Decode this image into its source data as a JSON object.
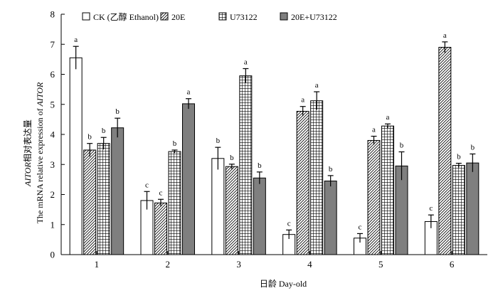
{
  "chart_data": {
    "type": "bar",
    "categories": [
      "1",
      "2",
      "3",
      "4",
      "5",
      "6"
    ],
    "xlabel": "日龄 Day-old",
    "ylabel_line1_italic": "AITOR",
    "ylabel_line1_rest": "相对表达量",
    "ylabel_line2_prefix": "The mRNA relative expression of ",
    "ylabel_line2_italic": "AITOR",
    "ylim": [
      0,
      8
    ],
    "yticks": [
      "0",
      "1",
      "2",
      "3",
      "4",
      "5",
      "6",
      "7",
      "8"
    ],
    "legend_position": "top",
    "series": [
      {
        "name": "CK (乙醇 Ethanol)",
        "pattern": "white",
        "values": [
          6.55,
          1.8,
          3.2,
          0.67,
          0.55,
          1.1
        ],
        "errors": [
          0.38,
          0.3,
          0.37,
          0.15,
          0.15,
          0.22
        ],
        "letters": [
          "a",
          "c",
          "b",
          "c",
          "c",
          "c"
        ]
      },
      {
        "name": "20E",
        "pattern": "diagonal",
        "values": [
          3.48,
          1.72,
          2.93,
          4.77,
          3.8,
          6.9
        ],
        "errors": [
          0.22,
          0.12,
          0.08,
          0.16,
          0.14,
          0.18
        ],
        "letters": [
          "b",
          "c",
          "b",
          "a",
          "a",
          "a"
        ]
      },
      {
        "name": "U73122",
        "pattern": "grid",
        "values": [
          3.7,
          3.43,
          5.95,
          5.12,
          4.28,
          2.97
        ],
        "errors": [
          0.2,
          0.05,
          0.24,
          0.3,
          0.07,
          0.07
        ],
        "letters": [
          "b",
          "b",
          "a",
          "a",
          "a",
          "b"
        ]
      },
      {
        "name": "20E+U73122",
        "pattern": "gray",
        "values": [
          4.22,
          5.02,
          2.55,
          2.45,
          2.95,
          3.05
        ],
        "errors": [
          0.32,
          0.17,
          0.2,
          0.18,
          0.47,
          0.3
        ],
        "letters": [
          "b",
          "a",
          "b",
          "b",
          "b",
          "b"
        ]
      }
    ]
  },
  "colors": {
    "gray_fill": "#7f7f7f",
    "stroke": "#000000",
    "background": "#ffffff"
  }
}
